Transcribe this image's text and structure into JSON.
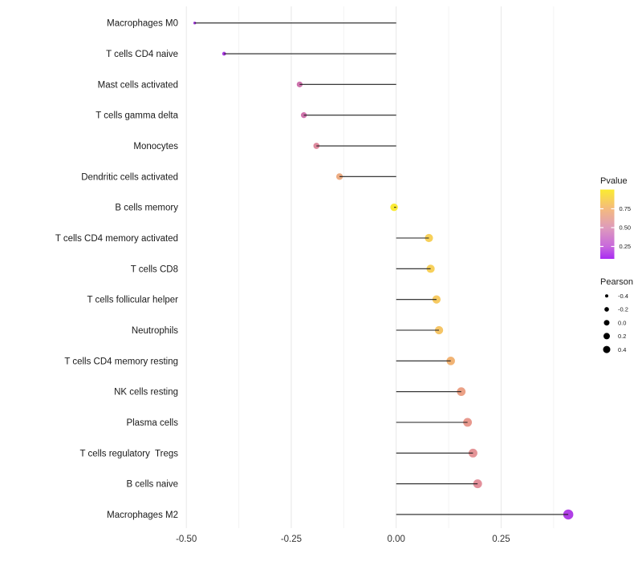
{
  "chart_data": {
    "type": "lollipop",
    "title": "",
    "xlabel": "",
    "ylabel": "",
    "orientation": "horizontal",
    "x_range": [
      -0.545,
      0.43
    ],
    "grid": "vertical-only",
    "x_ticks": {
      "major": [
        -0.5,
        -0.25,
        0.0,
        0.25
      ],
      "major_labels": [
        "-0.50",
        "-0.25",
        "0.00",
        "0.25"
      ],
      "minor": [
        -0.375,
        -0.125,
        0.125,
        0.375
      ]
    },
    "points": [
      {
        "label": "Macrophages M0",
        "pearson": -0.48,
        "color": "#9D2CDB"
      },
      {
        "label": "T cells CD4 naive",
        "pearson": -0.41,
        "color": "#A42FDF"
      },
      {
        "label": "Mast cells activated",
        "pearson": -0.23,
        "color": "#CB6BA9"
      },
      {
        "label": "T cells gamma delta",
        "pearson": -0.22,
        "color": "#CC6CA8"
      },
      {
        "label": "Monocytes",
        "pearson": -0.19,
        "color": "#DC8499"
      },
      {
        "label": "Dendritic cells activated",
        "pearson": -0.135,
        "color": "#ECA87B"
      },
      {
        "label": "B cells memory",
        "pearson": -0.005,
        "color": "#FAE92A"
      },
      {
        "label": "T cells CD4 memory activated",
        "pearson": 0.078,
        "color": "#F7CE51"
      },
      {
        "label": "T cells CD8",
        "pearson": 0.082,
        "color": "#F7CD52"
      },
      {
        "label": "T cells follicular helper",
        "pearson": 0.096,
        "color": "#F5C75A"
      },
      {
        "label": "Neutrophils",
        "pearson": 0.102,
        "color": "#F4C25F"
      },
      {
        "label": "T cells CD4 memory resting",
        "pearson": 0.13,
        "color": "#F0AF6D"
      },
      {
        "label": "NK cells resting",
        "pearson": 0.155,
        "color": "#EA9C80"
      },
      {
        "label": "Plasma cells",
        "pearson": 0.17,
        "color": "#E79488"
      },
      {
        "label": "T cells regulatory  Tregs",
        "pearson": 0.183,
        "color": "#E38E91"
      },
      {
        "label": "B cells naive",
        "pearson": 0.194,
        "color": "#E18A96"
      },
      {
        "label": "Macrophages M2",
        "pearson": 0.41,
        "color": "#AC35E5"
      }
    ],
    "legend_pvalue": {
      "title": "Pvalue",
      "tick_labels": [
        "0.75",
        "0.50",
        "0.25"
      ],
      "gradient_stops": [
        {
          "pos": 0.0,
          "color": "#FBEB30"
        },
        {
          "pos": 0.28,
          "color": "#F4BA7F"
        },
        {
          "pos": 0.55,
          "color": "#DE9BBB"
        },
        {
          "pos": 0.82,
          "color": "#C869DC"
        },
        {
          "pos": 1.0,
          "color": "#A92BF2"
        }
      ]
    },
    "legend_pearson": {
      "title": "Pearson",
      "items": [
        {
          "label": "-0.4",
          "r": 2.0
        },
        {
          "label": "-0.2",
          "r": 2.85
        },
        {
          "label": "0.0",
          "r": 3.5
        },
        {
          "label": "0.2",
          "r": 4.0
        },
        {
          "label": "0.4",
          "r": 4.5
        }
      ]
    },
    "style": {
      "stick_color": "#1f1f1f",
      "grid_major_color": "#e8e8e8",
      "grid_minor_color": "#f3f3f3",
      "background": "#ffffff"
    }
  }
}
